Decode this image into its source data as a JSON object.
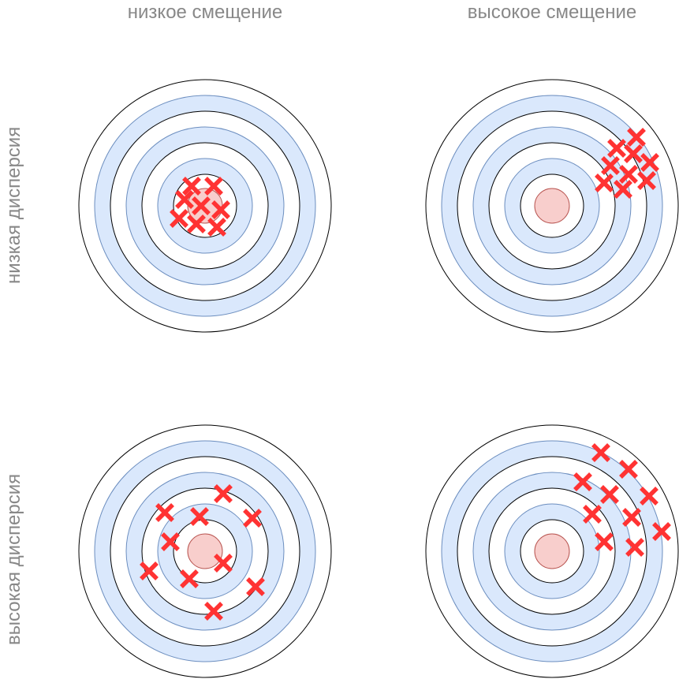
{
  "columns": [
    "низкое смещение",
    "высокое смещение"
  ],
  "rows": [
    "низкая дисперсия",
    "высокая дисперсия"
  ],
  "colors": {
    "ring_fill": "#dae8fc",
    "ring_stroke": "#6c8ebf",
    "ring_outline": "#000000",
    "bullseye_fill": "#f8cecc",
    "bullseye_stroke": "#b85450",
    "mark": "#ff3333",
    "label": "#888888"
  },
  "targets": [
    {
      "name": "low-bias-low-variance",
      "row": "низкая дисперсия",
      "column": "низкое смещение",
      "hits": [
        [
          -17,
          -25
        ],
        [
          11,
          -25
        ],
        [
          -26,
          -8
        ],
        [
          -5,
          0
        ],
        [
          20,
          5
        ],
        [
          -33,
          16
        ],
        [
          -11,
          23
        ],
        [
          15,
          27
        ]
      ]
    },
    {
      "name": "high-bias-low-variance",
      "row": "низкая дисперсия",
      "column": "высокое смещение",
      "hits": [
        [
          107,
          -87
        ],
        [
          82,
          -73
        ],
        [
          103,
          -66
        ],
        [
          74,
          -51
        ],
        [
          124,
          -55
        ],
        [
          97,
          -40
        ],
        [
          66,
          -29
        ],
        [
          120,
          -32
        ],
        [
          90,
          -21
        ]
      ]
    },
    {
      "name": "low-bias-high-variance",
      "row": "высокая дисперсия",
      "column": "низкое смещение",
      "hits": [
        [
          23,
          -73
        ],
        [
          -51,
          -49
        ],
        [
          -7,
          -44
        ],
        [
          60,
          -42
        ],
        [
          -44,
          -12
        ],
        [
          23,
          15
        ],
        [
          -71,
          25
        ],
        [
          -20,
          35
        ],
        [
          64,
          45
        ],
        [
          11,
          76
        ]
      ]
    },
    {
      "name": "high-bias-high-variance",
      "row": "высокая дисперсия",
      "column": "высокое смещение",
      "hits": [
        [
          62,
          -125
        ],
        [
          97,
          -104
        ],
        [
          39,
          -88
        ],
        [
          73,
          -72
        ],
        [
          123,
          -70
        ],
        [
          51,
          -47
        ],
        [
          101,
          -43
        ],
        [
          139,
          -25
        ],
        [
          66,
          -12
        ],
        [
          105,
          -5
        ]
      ]
    }
  ]
}
